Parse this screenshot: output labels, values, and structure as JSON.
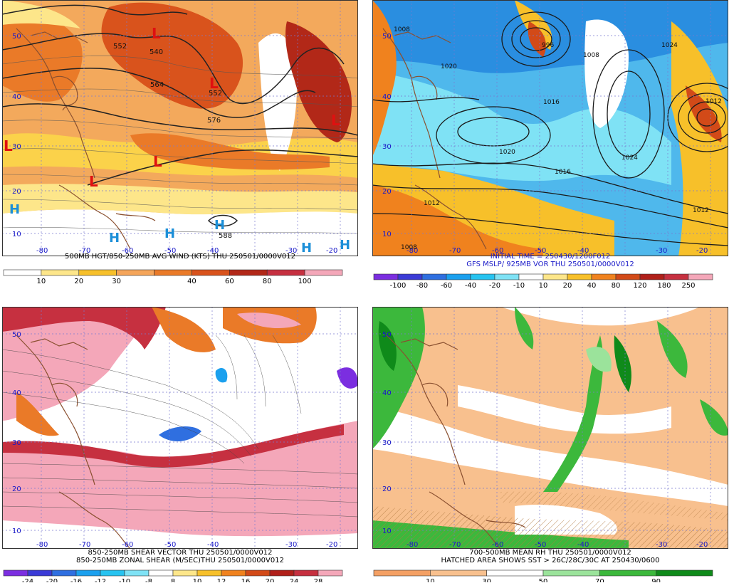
{
  "panels": [
    {
      "id": "top-left",
      "titles": [
        "500MB HGT/850-250MB AVG WIND (KTS) THU 250501/0000V012"
      ],
      "lat_labels": [
        "50",
        "40",
        "30",
        "20",
        "10"
      ],
      "lon_labels": [
        "-80",
        "-70",
        "-60",
        "-50",
        "-40",
        "-30",
        "-20"
      ],
      "contour_labels": [
        "552",
        "540",
        "564",
        "552",
        "576",
        "588"
      ],
      "lows": [
        "L",
        "L",
        "L",
        "L",
        "L",
        "L"
      ],
      "highs": [
        "H",
        "H",
        "H",
        "H",
        "H",
        "H"
      ],
      "colorbar": {
        "labels": [
          "10",
          "20",
          "30",
          "40",
          "60",
          "80",
          "100"
        ],
        "colors": [
          "#ffffff",
          "#fde68a",
          "#f7c02a",
          "#f5a55a",
          "#ea7a28",
          "#d9531c",
          "#b22818",
          "#c63040",
          "#f4a7b9"
        ]
      }
    },
    {
      "id": "top-right",
      "titles": [
        "INITIAL TIME = 250430/1200F012",
        "GFS MSLP/ 925MB VOR THU 250501/0000V012"
      ],
      "lat_labels": [
        "50",
        "40",
        "30",
        "20",
        "10"
      ],
      "lon_labels": [
        "-80",
        "-70",
        "-60",
        "-50",
        "-40",
        "-30",
        "-20"
      ],
      "contour_labels": [
        "1008",
        "996",
        "1008",
        "1024",
        "1020",
        "1016",
        "1020",
        "1024",
        "1016",
        "1012",
        "1012",
        "1008",
        "1012"
      ],
      "colorbar": {
        "labels": [
          "-100",
          "-80",
          "-60",
          "-40",
          "-20",
          "-10",
          "10",
          "20",
          "40",
          "80",
          "120",
          "180",
          "250"
        ],
        "colors": [
          "#7b2ee0",
          "#3b3bd6",
          "#2f6fe0",
          "#1ba0ee",
          "#27c3f0",
          "#7fe2f5",
          "#ffffff",
          "#fde68a",
          "#f7c02a",
          "#f0821e",
          "#d24a18",
          "#b0201a",
          "#c63040",
          "#f4a7b9"
        ]
      }
    },
    {
      "id": "bottom-left",
      "titles": [
        "850-250MB SHEAR VECTOR THU 250501/0000V012",
        "850-250MB ZONAL SHEAR (M/SEC)THU 250501/0000V012"
      ],
      "lat_labels": [
        "50",
        "40",
        "30",
        "20",
        "10"
      ],
      "lon_labels": [
        "-80",
        "-70",
        "-60",
        "-50",
        "-40",
        "-30",
        "-20"
      ],
      "colorbar": {
        "labels": [
          "-24",
          "-20",
          "-16",
          "-12",
          "-10",
          "-8",
          "8",
          "10",
          "12",
          "16",
          "20",
          "24",
          "28"
        ],
        "colors": [
          "#7b2ee0",
          "#3b3bd6",
          "#2f6fe0",
          "#1ba0ee",
          "#27c3f0",
          "#7fe2f5",
          "#ffffff",
          "#fde68a",
          "#f7c02a",
          "#f0821e",
          "#d24a18",
          "#b0201a",
          "#c63040",
          "#f4a7b9"
        ]
      }
    },
    {
      "id": "bottom-right",
      "titles": [
        "700-500MB MEAN RH THU 250501/0000V012",
        "HATCHED AREA SHOWS SST > 26C/28C/30C AT 250430/0600"
      ],
      "lat_labels": [
        "50",
        "40",
        "30",
        "20",
        "10"
      ],
      "lon_labels": [
        "-80",
        "-70",
        "-60",
        "-50",
        "-40",
        "-30",
        "-20"
      ],
      "colorbar": {
        "labels": [
          "10",
          "30",
          "50",
          "70",
          "90"
        ],
        "colors": [
          "#f4a064",
          "#f8c08e",
          "#ffffff",
          "#9be39b",
          "#3cb83c",
          "#0f8a1a"
        ]
      }
    }
  ]
}
